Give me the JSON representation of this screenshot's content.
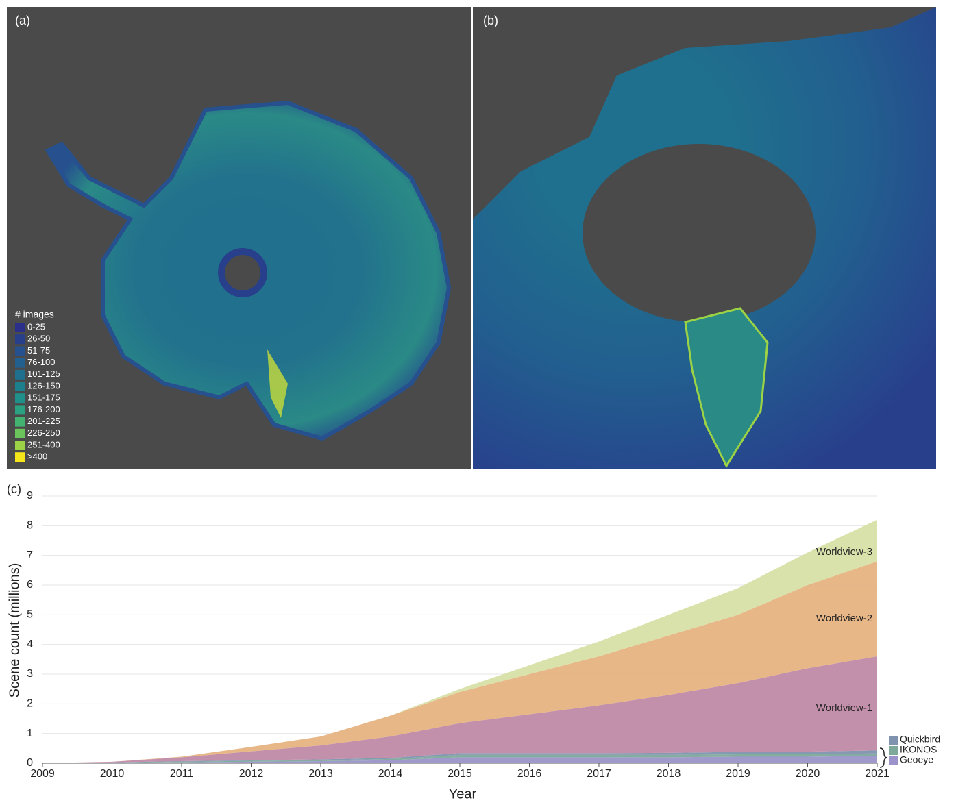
{
  "panels": {
    "a": "(a)",
    "b": "(b)",
    "c": "(c)"
  },
  "map_legend": {
    "title": "# images",
    "labels": [
      "0-25",
      "26-50",
      "51-75",
      "76-100",
      "101-125",
      "126-150",
      "151-175",
      "176-200",
      "201-225",
      "226-250",
      "251-400",
      ">400"
    ],
    "colors": [
      "#2b2f8a",
      "#283f8c",
      "#26508e",
      "#22608f",
      "#1f708e",
      "#1c808c",
      "#1f918a",
      "#2aa281",
      "#43b372",
      "#6bc35c",
      "#9cd245",
      "#f5e61b"
    ]
  },
  "chart_data": {
    "type": "stacked_area",
    "x_label": "Year",
    "y_label": "Scene count (millions)",
    "x": [
      2009,
      2010,
      2011,
      2012,
      2013,
      2014,
      2015,
      2016,
      2017,
      2018,
      2019,
      2020,
      2021
    ],
    "xlim": [
      2009,
      2021
    ],
    "xticks": [
      2009,
      2010,
      2011,
      2012,
      2013,
      2014,
      2015,
      2016,
      2017,
      2018,
      2019,
      2020,
      2021
    ],
    "ylim": [
      0,
      9
    ],
    "yticks": [
      0,
      1,
      2,
      3,
      4,
      5,
      6,
      7,
      8,
      9
    ],
    "grid": true,
    "series": [
      {
        "name": "Geoeye",
        "color": "#9b93c9",
        "values": [
          0,
          0.01,
          0.03,
          0.05,
          0.07,
          0.1,
          0.2,
          0.2,
          0.2,
          0.2,
          0.22,
          0.22,
          0.25
        ]
      },
      {
        "name": "IKONOS",
        "color": "#7ea99a",
        "values": [
          0,
          0.01,
          0.02,
          0.03,
          0.03,
          0.04,
          0.08,
          0.08,
          0.08,
          0.08,
          0.08,
          0.08,
          0.08
        ]
      },
      {
        "name": "Quickbird",
        "color": "#7f93ae",
        "values": [
          0,
          0.01,
          0.02,
          0.02,
          0.03,
          0.04,
          0.06,
          0.06,
          0.06,
          0.07,
          0.08,
          0.09,
          0.1
        ]
      },
      {
        "name": "Worldview-1",
        "color": "#c08aa8",
        "values": [
          0,
          0.02,
          0.13,
          0.3,
          0.47,
          0.72,
          1.01,
          1.31,
          1.61,
          1.95,
          2.32,
          2.81,
          3.17
        ]
      },
      {
        "name": "Worldview-2",
        "color": "#e6b382",
        "values": [
          0,
          0,
          0.02,
          0.15,
          0.3,
          0.7,
          1.05,
          1.35,
          1.65,
          2.0,
          2.3,
          2.8,
          3.2
        ]
      },
      {
        "name": "Worldview-3",
        "color": "#d8e0a8",
        "values": [
          0,
          0,
          0,
          0,
          0,
          0,
          0.1,
          0.3,
          0.5,
          0.7,
          0.9,
          1.1,
          1.4
        ]
      }
    ]
  }
}
